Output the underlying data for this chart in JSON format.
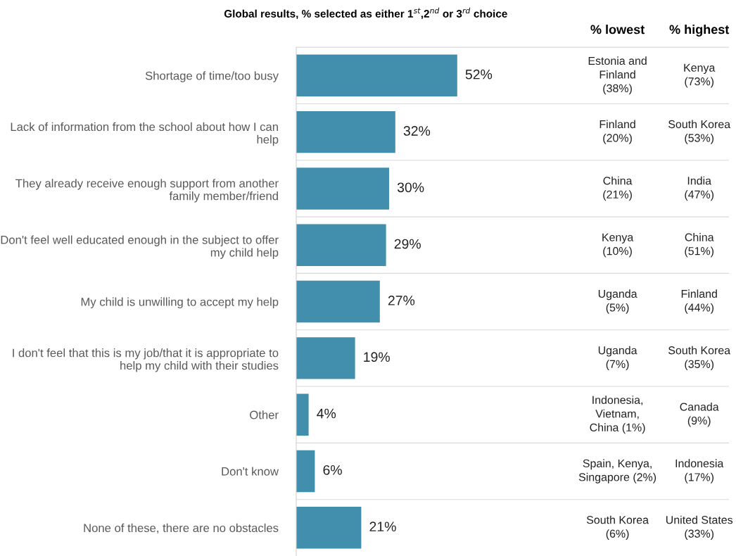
{
  "chart_data": {
    "type": "bar",
    "orientation": "horizontal",
    "title": "Global results, % selected as either 1$^{st}$,2$^{nd}$ or 3$^{rd}$ choice",
    "categories": [
      "Shortage of time/too busy",
      "Lack of information from the school about how I can help",
      "They already receive enough support from another family member/friend",
      "Don't feel well educated enough in the subject to offer my child help",
      "My child is unwilling to accept my help",
      "I don't feel that this is my job/that it is appropriate to help my child with their studies",
      "Other",
      "Don't know",
      "None of these, there are no obstacles"
    ],
    "values": [
      52,
      32,
      30,
      29,
      27,
      19,
      4,
      6,
      21
    ],
    "value_labels": [
      "52%",
      "32%",
      "30%",
      "29%",
      "27%",
      "19%",
      "4%",
      "6%",
      "21%"
    ],
    "color": "#428fad",
    "legend": false,
    "grid": false,
    "annotations": [
      "% lowest",
      "% highest",
      "Estonia and\nFinland\n(38%)",
      "Kenya\n(73%)",
      "Finland\n(20%)",
      "South Korea\n(53%)",
      "China\n(21%)",
      "India\n(47%)",
      "Kenya\n(10%)",
      "China\n(51%)",
      "Uganda\n(5%)",
      "Finland\n(44%)",
      "Uganda\n(7%)",
      "South Korea\n(35%)",
      "Indonesia,\nVietnam,\nChina (1%)",
      "Canada\n(9%)",
      "Spain, Kenya,\nSingapore (2%)",
      "Indonesia\n(17%)",
      "South Korea\n(6%)",
      "United States\n(33%)"
    ]
  }
}
